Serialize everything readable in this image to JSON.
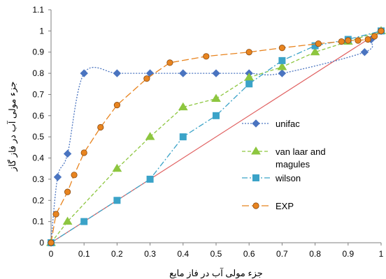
{
  "chart_data": {
    "type": "line",
    "title": "",
    "xlabel": "جزء مولی آب در فاز مایع",
    "ylabel": "جزء مولی آب در فاز گاز",
    "xlim": [
      0,
      1
    ],
    "ylim": [
      0,
      1.1
    ],
    "x_ticks": [
      "0",
      "0.1",
      "0.2",
      "0.3",
      "0.4",
      "0.5",
      "0.6",
      "0.7",
      "0.8",
      "0.9",
      "1"
    ],
    "y_ticks": [
      "0",
      "0.1",
      "0.2",
      "0.3",
      "0.4",
      "0.5",
      "0.6",
      "0.7",
      "0.8",
      "0.9",
      "1",
      "1.1"
    ],
    "grid": false,
    "legend_position": "right",
    "diagonal": {
      "x": [
        0,
        1
      ],
      "y": [
        0,
        1
      ],
      "color": "#e06060"
    },
    "series": [
      {
        "name": "unifac",
        "color": "#4a74c0",
        "marker": "diamond",
        "dash": "dotted",
        "x": [
          0,
          0.02,
          0.05,
          0.1,
          0.2,
          0.3,
          0.4,
          0.5,
          0.6,
          0.7,
          0.95,
          0.97,
          1
        ],
        "y": [
          0,
          0.31,
          0.42,
          0.8,
          0.8,
          0.8,
          0.8,
          0.8,
          0.8,
          0.8,
          0.9,
          0.96,
          1
        ]
      },
      {
        "name": "van laar and magules",
        "name_lines": [
          "van laar and",
          "magules"
        ],
        "color": "#8dc63f",
        "marker": "triangle",
        "dash": "dashed",
        "x": [
          0,
          0.05,
          0.2,
          0.3,
          0.4,
          0.5,
          0.6,
          0.7,
          0.8,
          0.9,
          1
        ],
        "y": [
          0,
          0.1,
          0.35,
          0.5,
          0.64,
          0.68,
          0.78,
          0.83,
          0.9,
          0.95,
          1
        ]
      },
      {
        "name": "wilson",
        "color": "#3ba3c8",
        "marker": "square",
        "dash": "dashdot",
        "x": [
          0,
          0.1,
          0.2,
          0.3,
          0.4,
          0.5,
          0.6,
          0.7,
          0.8,
          0.9,
          1
        ],
        "y": [
          0,
          0.1,
          0.2,
          0.3,
          0.5,
          0.6,
          0.75,
          0.86,
          0.93,
          0.96,
          1
        ]
      },
      {
        "name": "EXP",
        "color": "#e8841f",
        "marker": "circle",
        "dash": "longdash",
        "x": [
          0,
          0.015,
          0.05,
          0.07,
          0.1,
          0.15,
          0.2,
          0.29,
          0.36,
          0.47,
          0.6,
          0.7,
          0.81,
          0.88,
          0.9,
          0.93,
          0.96,
          0.98,
          1
        ],
        "y": [
          0,
          0.135,
          0.24,
          0.32,
          0.425,
          0.545,
          0.65,
          0.775,
          0.85,
          0.88,
          0.9,
          0.92,
          0.94,
          0.95,
          0.955,
          0.955,
          0.96,
          0.975,
          1
        ]
      }
    ]
  }
}
